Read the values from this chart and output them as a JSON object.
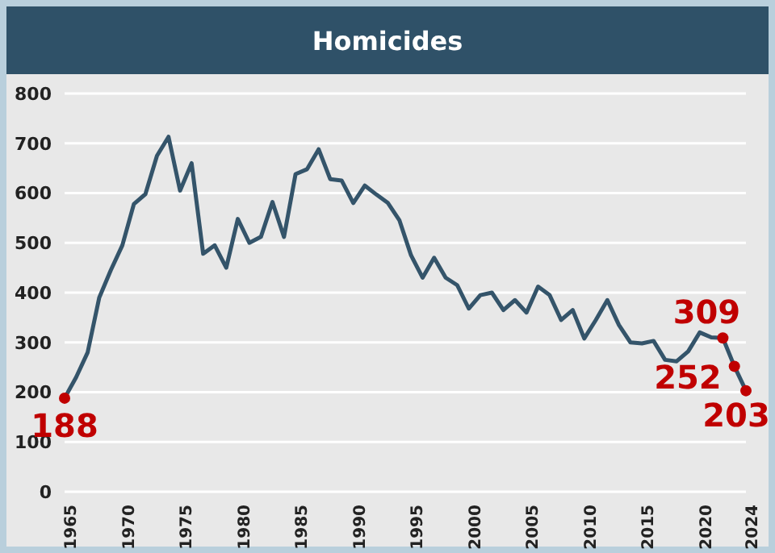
{
  "chart_data": {
    "type": "line",
    "title": "Homicides",
    "x": [
      1965,
      1966,
      1967,
      1968,
      1969,
      1970,
      1971,
      1972,
      1973,
      1974,
      1975,
      1976,
      1977,
      1978,
      1979,
      1980,
      1981,
      1982,
      1983,
      1984,
      1985,
      1986,
      1987,
      1988,
      1989,
      1990,
      1991,
      1992,
      1993,
      1994,
      1995,
      1996,
      1997,
      1998,
      1999,
      2000,
      2001,
      2002,
      2003,
      2004,
      2005,
      2006,
      2007,
      2008,
      2009,
      2010,
      2011,
      2012,
      2013,
      2014,
      2015,
      2016,
      2017,
      2018,
      2019,
      2020,
      2021,
      2022,
      2023,
      2024
    ],
    "series": [
      {
        "color": "#34546a",
        "values": [
          188,
          230,
          280,
          390,
          445,
          495,
          578,
          598,
          675,
          713,
          605,
          660,
          478,
          495,
          450,
          548,
          500,
          512,
          582,
          512,
          638,
          648,
          688,
          628,
          625,
          580,
          615,
          597,
          580,
          545,
          475,
          430,
          470,
          430,
          415,
          368,
          395,
          400,
          365,
          385,
          360,
          412,
          395,
          345,
          365,
          308,
          345,
          385,
          335,
          300,
          298,
          303,
          265,
          262,
          282,
          320,
          310,
          309,
          252,
          203
        ],
        "value_labels": [
          "188",
          null,
          null,
          null,
          null,
          null,
          null,
          null,
          null,
          null,
          null,
          null,
          null,
          null,
          null,
          null,
          null,
          null,
          null,
          null,
          null,
          null,
          null,
          null,
          null,
          null,
          null,
          null,
          null,
          null,
          null,
          null,
          null,
          null,
          null,
          null,
          null,
          null,
          null,
          null,
          null,
          null,
          null,
          null,
          null,
          null,
          null,
          null,
          null,
          null,
          null,
          null,
          null,
          null,
          null,
          null,
          null,
          "309",
          "252",
          "203"
        ]
      }
    ],
    "xlim": [
      1965,
      2024
    ],
    "xticks": [
      1965,
      1970,
      1975,
      1980,
      1985,
      1990,
      1995,
      2000,
      2005,
      2010,
      2015,
      2020,
      2024
    ],
    "ylim": [
      0,
      800
    ],
    "yticks": [
      0,
      100,
      200,
      300,
      400,
      500,
      600,
      700,
      800
    ],
    "grid": "y",
    "line_style": "solid"
  }
}
